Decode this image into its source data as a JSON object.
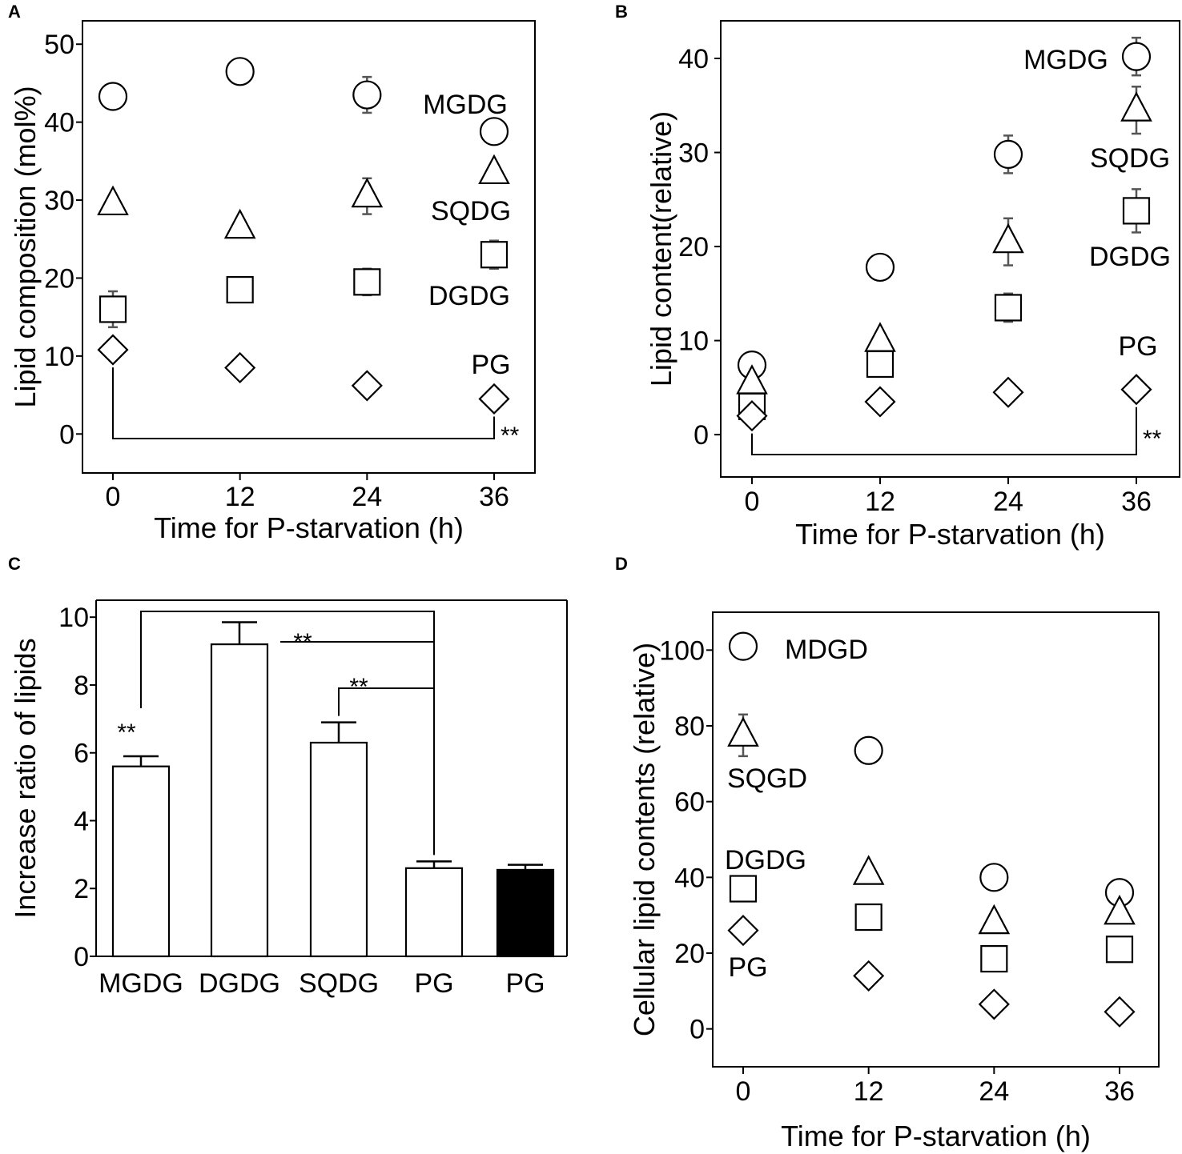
{
  "chart_data": [
    {
      "panel": "A",
      "type": "scatter",
      "xlabel": "Time for P-starvation (h)",
      "ylabel": "Lipid composition (mol%)",
      "x": [
        0,
        12,
        24,
        36
      ],
      "xlim": [
        0,
        36
      ],
      "ylim": [
        -5,
        53
      ],
      "yticks": [
        0,
        10,
        20,
        30,
        40,
        50
      ],
      "xticks": [
        0,
        12,
        24,
        36
      ],
      "series": [
        {
          "name": "MGDG",
          "marker": "circle",
          "values": [
            43.3,
            46.5,
            43.5,
            38.8
          ],
          "errors": [
            0,
            0,
            2.3,
            1.3
          ]
        },
        {
          "name": "SQDG",
          "marker": "triangle",
          "values": [
            29.5,
            26.5,
            30.5,
            33.5
          ],
          "errors": [
            0,
            0,
            2.3,
            0
          ]
        },
        {
          "name": "DGDG",
          "marker": "square",
          "values": [
            16.0,
            18.5,
            19.5,
            23.0
          ],
          "errors": [
            2.3,
            0,
            1.7,
            1.8
          ]
        },
        {
          "name": "PG",
          "marker": "diamond",
          "values": [
            10.8,
            8.5,
            6.2,
            4.5
          ],
          "errors": [
            0,
            0,
            0,
            0
          ]
        }
      ],
      "significance": {
        "label": "**",
        "from": 0,
        "to": 36
      }
    },
    {
      "panel": "B",
      "type": "scatter",
      "xlabel": "Time for P-starvation (h)",
      "ylabel": "Lipid content(relative)",
      "x": [
        0,
        12,
        24,
        36
      ],
      "xlim": [
        0,
        36
      ],
      "ylim": [
        -4.5,
        44
      ],
      "yticks": [
        0,
        10,
        20,
        30,
        40
      ],
      "xticks": [
        0,
        12,
        24,
        36
      ],
      "series": [
        {
          "name": "MGDG",
          "marker": "circle",
          "values": [
            7.4,
            17.8,
            29.8,
            40.2
          ],
          "errors": [
            0,
            0,
            2.0,
            2.0
          ]
        },
        {
          "name": "SQDG",
          "marker": "triangle",
          "values": [
            5.5,
            10.0,
            20.5,
            34.5
          ],
          "errors": [
            0,
            0,
            2.5,
            2.5
          ]
        },
        {
          "name": "DGDG",
          "marker": "square",
          "values": [
            3.0,
            7.5,
            13.5,
            23.8
          ],
          "errors": [
            0,
            0,
            1.5,
            2.3
          ]
        },
        {
          "name": "PG",
          "marker": "diamond",
          "values": [
            2.0,
            3.5,
            4.5,
            4.8
          ],
          "errors": [
            0,
            0,
            0,
            0
          ]
        }
      ],
      "significance": {
        "label": "**",
        "from": 0,
        "to": 36
      }
    },
    {
      "panel": "C",
      "type": "bar",
      "xlabel": "",
      "ylabel": "Increase ratio of lipids",
      "categories": [
        "MGDG",
        "DGDG",
        "SQDG",
        "PG",
        "PG"
      ],
      "values": [
        5.6,
        9.2,
        6.3,
        2.6,
        2.55
      ],
      "errors": [
        0.3,
        0.65,
        0.6,
        0.2,
        0.15
      ],
      "fills": [
        "#ffffff",
        "#ffffff",
        "#ffffff",
        "#ffffff",
        "#000000"
      ],
      "ylim": [
        0,
        10.5
      ],
      "yticks": [
        0,
        2,
        4,
        6,
        8,
        10
      ],
      "significance": [
        {
          "label": "**",
          "from": "MGDG",
          "to": "PG"
        },
        {
          "label": "**",
          "from": "DGDG",
          "to": "PG"
        },
        {
          "label": "**",
          "from": "SQDG",
          "to": "PG"
        }
      ]
    },
    {
      "panel": "D",
      "type": "scatter",
      "xlabel": "Time for P-starvation (h)",
      "ylabel": "Cellular lipid contents (relative)",
      "x": [
        0,
        12,
        24,
        36
      ],
      "xlim": [
        0,
        36
      ],
      "ylim": [
        -10,
        110
      ],
      "yticks": [
        0,
        20,
        40,
        60,
        80,
        100
      ],
      "xticks": [
        0,
        12,
        24,
        36
      ],
      "series": [
        {
          "name": "MDGD",
          "marker": "circle",
          "values": [
            101,
            73.5,
            40,
            36
          ],
          "errors": [
            0,
            0,
            0,
            0
          ]
        },
        {
          "name": "SQGD",
          "marker": "triangle",
          "values": [
            77.5,
            41,
            28,
            30.5
          ],
          "errors": [
            5.5,
            0,
            0,
            0
          ]
        },
        {
          "name": "DGDG",
          "marker": "square",
          "values": [
            37,
            29.5,
            18.5,
            21
          ],
          "errors": [
            0,
            0,
            0,
            0
          ]
        },
        {
          "name": "PG",
          "marker": "diamond",
          "values": [
            26,
            14,
            6.5,
            4.5
          ],
          "errors": [
            0,
            0,
            0,
            0
          ]
        }
      ]
    }
  ]
}
